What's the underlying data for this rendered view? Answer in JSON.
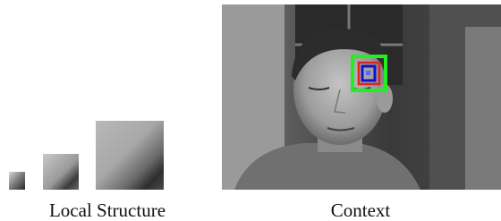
{
  "captions": {
    "local_structure": "Local Structure",
    "context": "Context"
  }
}
